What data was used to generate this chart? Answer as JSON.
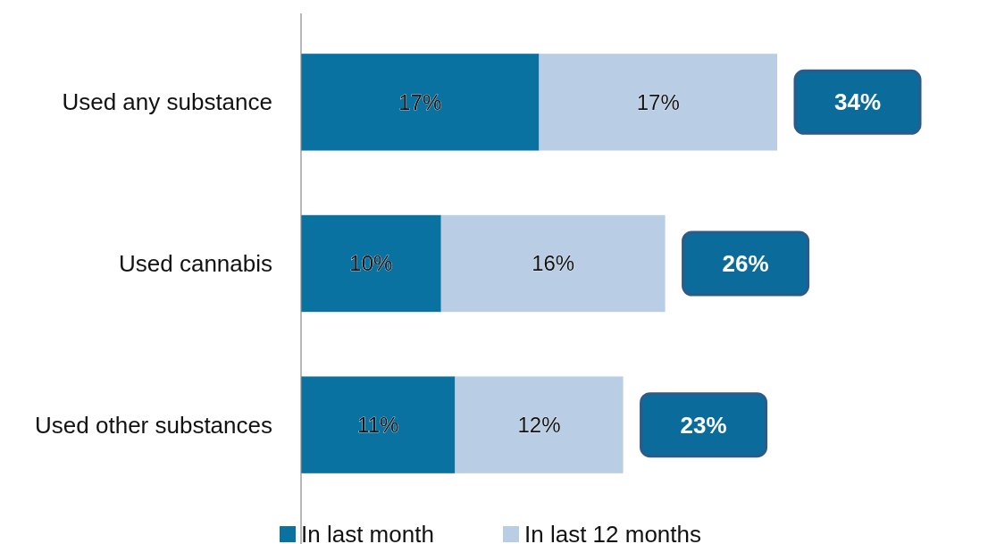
{
  "chart_data": {
    "type": "bar",
    "orientation": "horizontal",
    "stacked": true,
    "categories": [
      "Used any substance",
      "Used cannabis",
      "Used other substances"
    ],
    "series": [
      {
        "name": "In last month",
        "color": "#0a72a0",
        "values": [
          17,
          10,
          11
        ],
        "value_labels": [
          "17%",
          "10%",
          "11%"
        ]
      },
      {
        "name": "In last 12 months",
        "color": "#b9cde5",
        "values": [
          17,
          16,
          12
        ],
        "value_labels": [
          "17%",
          "16%",
          "12%"
        ]
      }
    ],
    "totals": [
      "34%",
      "26%",
      "23%"
    ],
    "legend": "bottom"
  }
}
